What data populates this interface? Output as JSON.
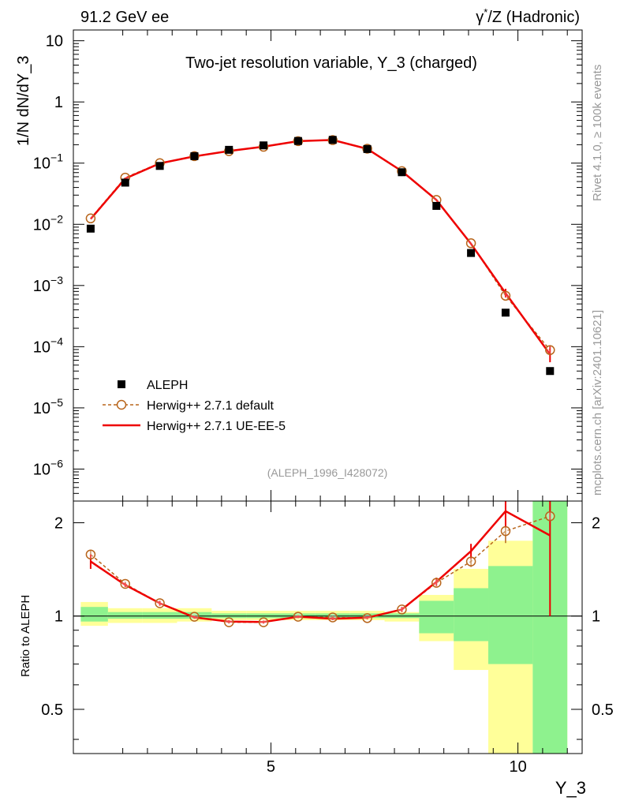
{
  "header": {
    "left": "91.2 GeV ee",
    "right_prefix": "γ",
    "right_sup": "*",
    "right_suffix": "/Z (Hadronic)"
  },
  "side_labels": {
    "rivet": "Rivet 4.1.0, ≥ 100k events",
    "mcplots": "mcplots.cern.ch [arXiv:2401.10621]"
  },
  "colors": {
    "data": "#000000",
    "herwig_default": "#b8651b",
    "herwig_ueee5": "#ee0000",
    "band_inner": "#8ef28e",
    "band_outer": "#ffff99"
  },
  "chart_data": [
    {
      "type": "line",
      "panel": "main",
      "title": "Two-jet resolution variable, Y_3 (charged)",
      "ylabel": "1/N  dN/dY_3",
      "yscale": "log",
      "ylim": [
        3e-07,
        15
      ],
      "xlim": [
        1,
        11.3
      ],
      "ytick_labels": [
        {
          "v": 10,
          "base": "10",
          "exp": ""
        },
        {
          "v": 1,
          "base": "1",
          "exp": ""
        },
        {
          "v": 0.1,
          "base": "10",
          "exp": "−1"
        },
        {
          "v": 0.01,
          "base": "10",
          "exp": "−2"
        },
        {
          "v": 0.001,
          "base": "10",
          "exp": "−3"
        },
        {
          "v": 0.0001,
          "base": "10",
          "exp": "−4"
        },
        {
          "v": 1e-05,
          "base": "10",
          "exp": "−5"
        },
        {
          "v": 1e-06,
          "base": "10",
          "exp": "−6"
        }
      ],
      "reference": "(ALEPH_1996_I428072)",
      "legend": [
        "ALEPH",
        "Herwig++ 2.7.1 default",
        "Herwig++ 2.7.1 UE-EE-5"
      ],
      "x": [
        1.35,
        2.05,
        2.75,
        3.45,
        4.15,
        4.85,
        5.55,
        6.25,
        6.95,
        7.65,
        8.35,
        9.05,
        9.75,
        10.65
      ],
      "series": [
        {
          "name": "ALEPH",
          "values": [
            0.0085,
            0.048,
            0.09,
            0.13,
            0.165,
            0.195,
            0.23,
            0.24,
            0.17,
            0.071,
            0.02,
            0.0034,
            0.00036,
            4e-05
          ]
        },
        {
          "name": "Herwig++ 2.7.1 default",
          "values": [
            0.0125,
            0.058,
            0.1,
            0.13,
            0.157,
            0.185,
            0.229,
            0.238,
            0.172,
            0.074,
            0.025,
            0.0049,
            0.00068,
            8.8e-05
          ]
        },
        {
          "name": "Herwig++ 2.7.1 UE-EE-5",
          "values": [
            0.0122,
            0.056,
            0.099,
            0.129,
            0.158,
            0.186,
            0.229,
            0.239,
            0.171,
            0.074,
            0.025,
            0.0048,
            0.00075,
            7.52e-05
          ]
        }
      ]
    },
    {
      "type": "line",
      "panel": "ratio",
      "ylabel": "Ratio to ALEPH",
      "xlabel": "Y_3",
      "yscale": "log",
      "ylim": [
        0.36,
        2.35
      ],
      "yticks": [
        2,
        1,
        0.5
      ],
      "ytick_labels": [
        "2",
        "1",
        "0.5"
      ],
      "xticks": [
        5,
        10
      ],
      "xtick_labels": [
        "5",
        "10"
      ],
      "bins": [
        [
          1.15,
          1.7
        ],
        [
          1.7,
          2.4
        ],
        [
          2.4,
          3.1
        ],
        [
          3.1,
          3.8
        ],
        [
          3.8,
          4.5
        ],
        [
          4.5,
          5.2
        ],
        [
          5.2,
          5.9
        ],
        [
          5.9,
          6.6
        ],
        [
          6.6,
          7.3
        ],
        [
          7.3,
          8.0
        ],
        [
          8.0,
          8.7
        ],
        [
          8.7,
          9.4
        ],
        [
          9.4,
          10.3
        ],
        [
          10.3,
          11.0
        ]
      ],
      "band_inner": [
        [
          0.96,
          1.07
        ],
        [
          0.98,
          1.03
        ],
        [
          0.98,
          1.03
        ],
        [
          0.98,
          1.03
        ],
        [
          0.985,
          1.02
        ],
        [
          0.985,
          1.02
        ],
        [
          0.985,
          1.02
        ],
        [
          0.985,
          1.02
        ],
        [
          0.985,
          1.02
        ],
        [
          0.985,
          1.02
        ],
        [
          0.88,
          1.12
        ],
        [
          0.83,
          1.23
        ],
        [
          0.7,
          1.45
        ],
        [
          0.36,
          2.35
        ]
      ],
      "band_outer": [
        [
          0.93,
          1.11
        ],
        [
          0.95,
          1.06
        ],
        [
          0.95,
          1.06
        ],
        [
          0.96,
          1.06
        ],
        [
          0.97,
          1.04
        ],
        [
          0.97,
          1.04
        ],
        [
          0.97,
          1.04
        ],
        [
          0.97,
          1.04
        ],
        [
          0.97,
          1.04
        ],
        [
          0.96,
          1.03
        ],
        [
          0.83,
          1.17
        ],
        [
          0.67,
          1.42
        ],
        [
          0.36,
          1.75
        ],
        [
          0.36,
          2.35
        ]
      ],
      "series": [
        {
          "name": "Herwig++ 2.7.1 default",
          "values": [
            1.58,
            1.27,
            1.1,
            0.995,
            0.955,
            0.955,
            0.995,
            0.99,
            0.985,
            1.05,
            1.28,
            1.5,
            1.88,
            2.1
          ],
          "err": [
            0.05,
            0.02,
            0.02,
            0.01,
            0.01,
            0.01,
            0.01,
            0.01,
            0.01,
            0.02,
            0.03,
            0.06,
            0.16,
            0.7
          ]
        },
        {
          "name": "Herwig++ 2.7.1 UE-EE-5",
          "values": [
            1.5,
            1.26,
            1.1,
            0.99,
            0.96,
            0.957,
            0.995,
            0.98,
            0.988,
            1.05,
            1.29,
            1.62,
            2.18,
            1.82
          ],
          "err": [
            0.08,
            0.02,
            0.02,
            0.01,
            0.01,
            0.01,
            0.01,
            0.01,
            0.01,
            0.02,
            0.04,
            0.09,
            0.25,
            0.82
          ]
        }
      ]
    }
  ]
}
